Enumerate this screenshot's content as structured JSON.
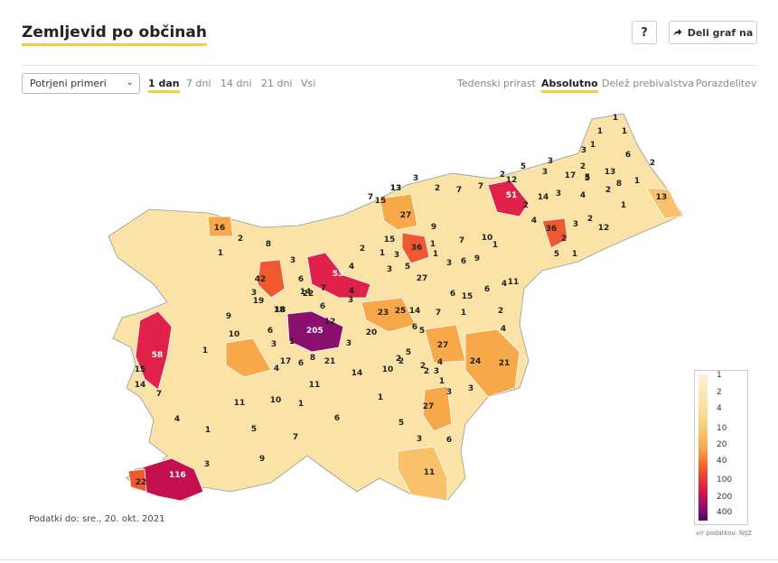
{
  "title": "Zemljevid po občinah",
  "help_label": "?",
  "share": {
    "label": "Deli graf na",
    "icon": "share-arrow-icon"
  },
  "select": {
    "value": "Potrjeni primeri",
    "icon": "chevron-down-icon"
  },
  "time_tabs": [
    {
      "label": "1 dan",
      "active": true
    },
    {
      "label": "7 dni",
      "active": false
    },
    {
      "label": "14 dni",
      "active": false
    },
    {
      "label": "21 dni",
      "active": false
    },
    {
      "label": "Vsi",
      "active": false
    }
  ],
  "mode_tabs": [
    {
      "label": "Tedenski prirast",
      "active": false
    },
    {
      "label": "Absolutno",
      "active": true
    },
    {
      "label": "Delež prebivalstva",
      "active": false
    },
    {
      "label": "Porazdelitev",
      "active": false
    }
  ],
  "footer_date": "Podatki do: sre., 20. okt. 2021",
  "source": "vir podatkov: NIJZ",
  "legend": {
    "labels": [
      "1",
      "2",
      "4",
      "10",
      "20",
      "40",
      "100",
      "200",
      "400"
    ]
  },
  "colors": {
    "accent": "#f4d03f",
    "max": "#8a0f6e",
    "high": "#e0224a",
    "mid": "#f7a94a",
    "low": "#fbe3a8",
    "zero": "#ffffff"
  },
  "municipality_values": [
    "1",
    "1",
    "1",
    "1",
    "3",
    "6",
    "2",
    "2",
    "5",
    "3",
    "17",
    "13",
    "2",
    "2",
    "8",
    "1",
    "12",
    "3",
    "5",
    "13",
    "51",
    "14",
    "3",
    "4",
    "5",
    "12",
    "2",
    "3",
    "2",
    "4",
    "36",
    "2",
    "1",
    "5",
    "1",
    "13",
    "7",
    "15",
    "13",
    "3",
    "2",
    "7",
    "7",
    "27",
    "36",
    "9",
    "1",
    "7",
    "10",
    "1",
    "4",
    "16",
    "2",
    "8",
    "1",
    "2",
    "15",
    "1",
    "3",
    "3",
    "5",
    "3",
    "6",
    "42",
    "3",
    "6",
    "4",
    "53",
    "3",
    "7",
    "14",
    "27",
    "6",
    "9",
    "1",
    "15",
    "6",
    "4",
    "11",
    "22",
    "3",
    "1",
    "19",
    "18",
    "6",
    "12",
    "23",
    "25",
    "14",
    "7",
    "1",
    "2",
    "4",
    "20",
    "5",
    "205",
    "2",
    "3",
    "5",
    "6",
    "9",
    "10",
    "6",
    "3",
    "27",
    "58",
    "1",
    "2",
    "15",
    "18",
    "4",
    "17",
    "6",
    "8",
    "21",
    "14",
    "10",
    "2",
    "4",
    "3",
    "24",
    "21",
    "14",
    "7",
    "11",
    "2",
    "1",
    "3",
    "3",
    "1",
    "10",
    "1",
    "6",
    "5",
    "27",
    "11",
    "1",
    "5",
    "7",
    "3",
    "6",
    "4",
    "9",
    "22",
    "116",
    "3",
    "11"
  ]
}
